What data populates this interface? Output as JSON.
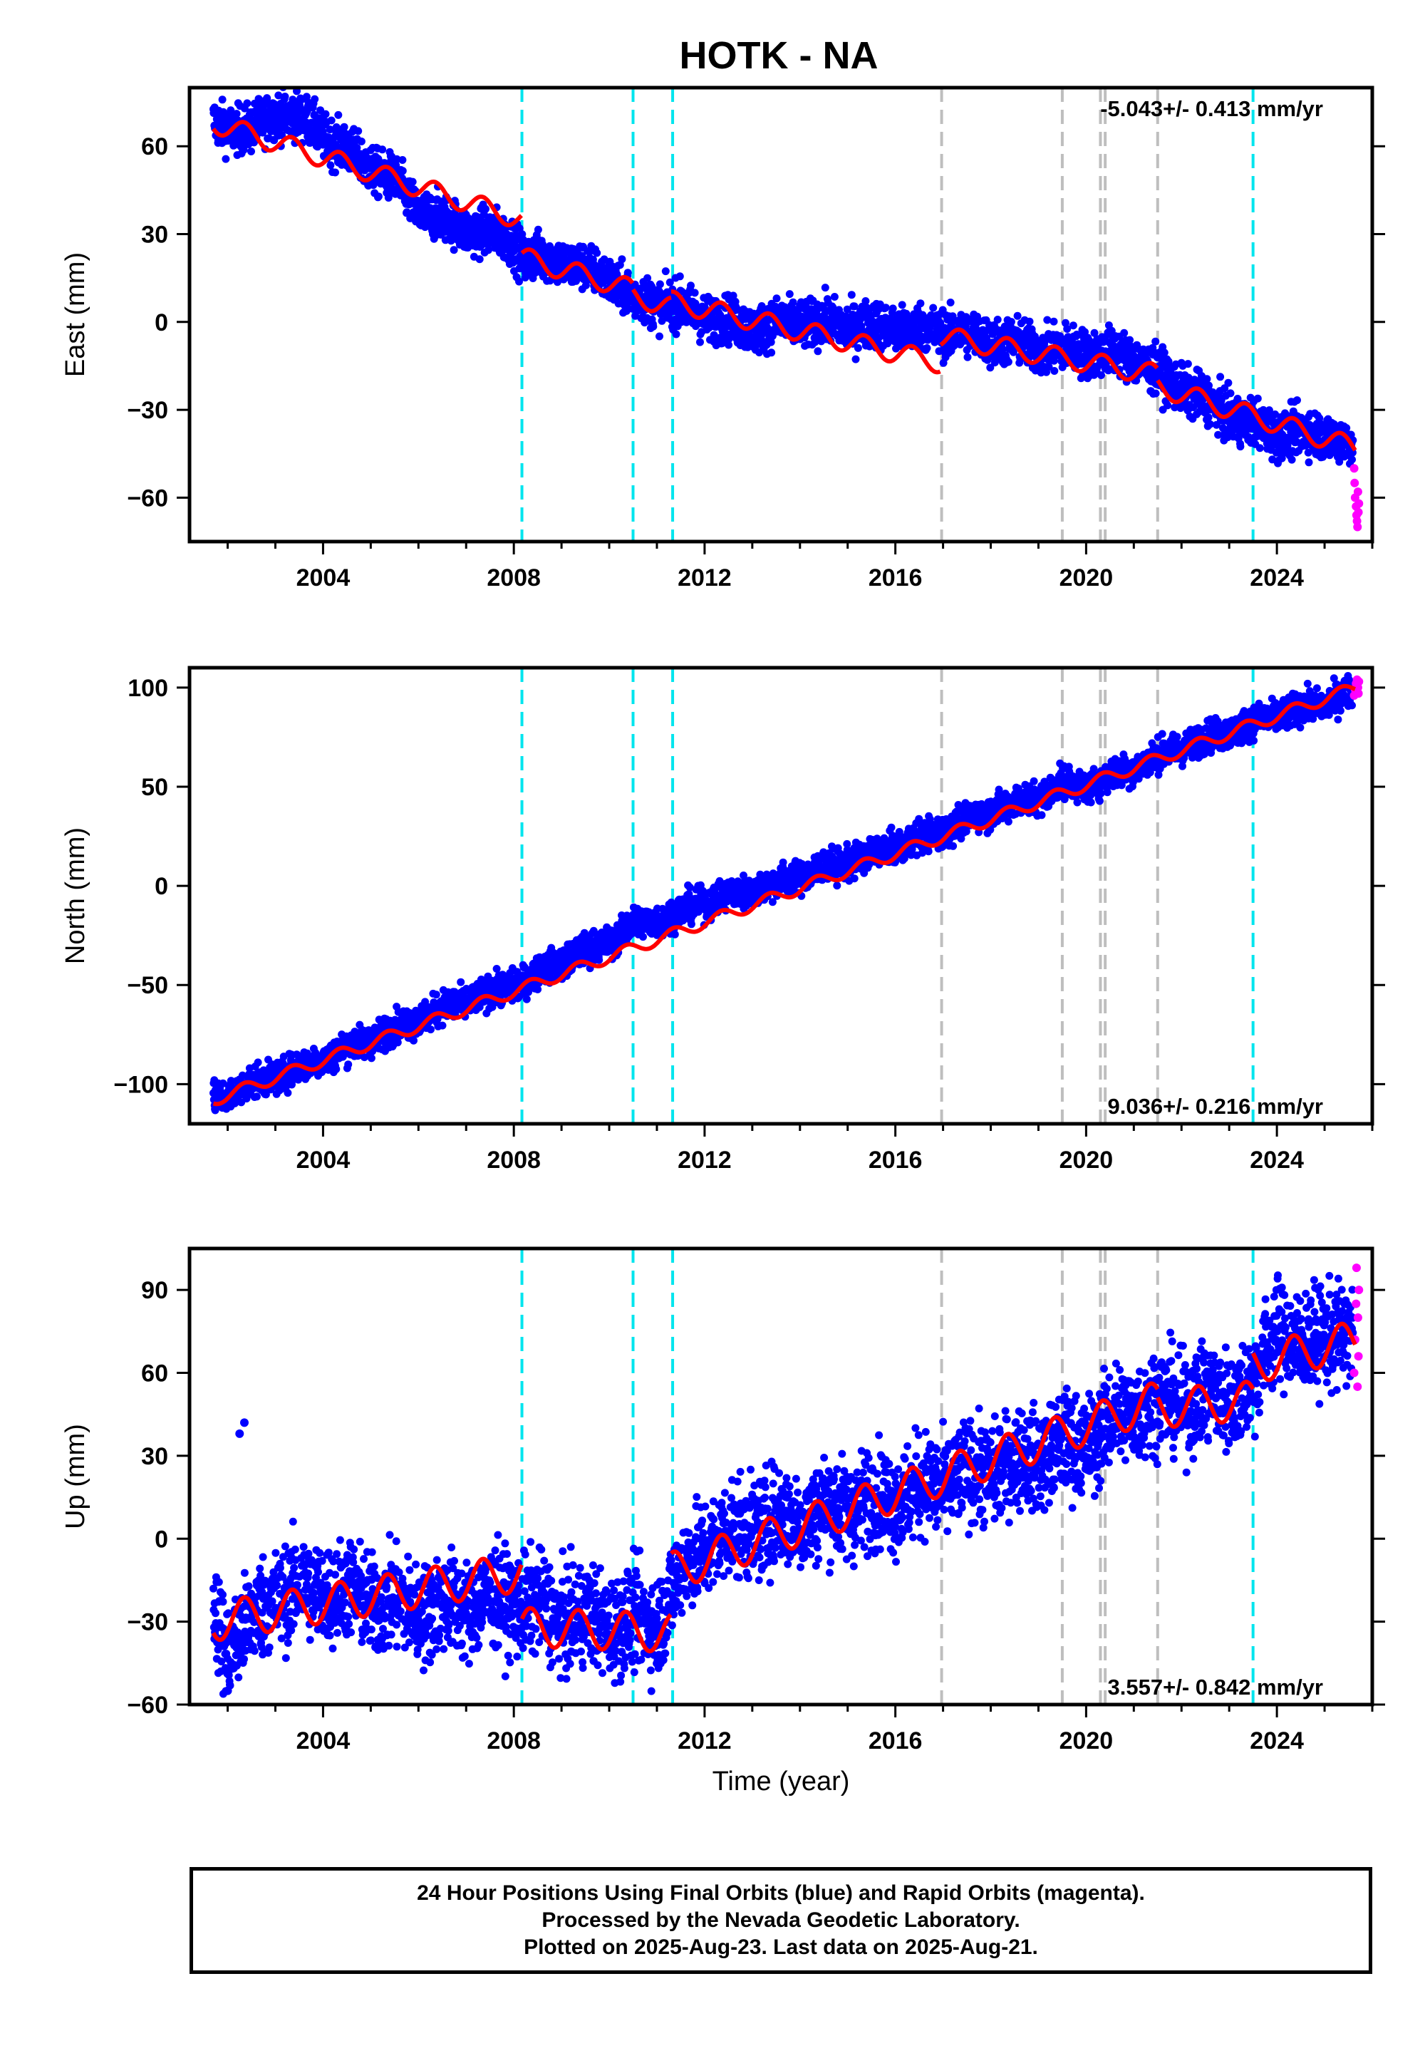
{
  "title": "HOTK - NA",
  "chart_data": [
    {
      "type": "scatter",
      "name": "East",
      "ylabel": "East (mm)",
      "ylim": [
        -75,
        80
      ],
      "yticks": [
        60,
        30,
        0,
        -30,
        -60
      ],
      "ytick_labels": [
        "60",
        "30",
        "0",
        "−30",
        "−60"
      ],
      "xlim": [
        2001.2,
        2026.0
      ],
      "xticks": [
        2004,
        2008,
        2012,
        2016,
        2020,
        2024
      ],
      "xtick_labels": [
        "2004",
        "2008",
        "2012",
        "2016",
        "2020",
        "2024"
      ],
      "rate_text": "-5.043+/- 0.413 mm/yr",
      "rate_position": "top-right",
      "final_orbits_trend": [
        [
          2001.7,
          68
        ],
        [
          2002.5,
          65
        ],
        [
          2003.0,
          72
        ],
        [
          2003.7,
          68
        ],
        [
          2004.5,
          58
        ],
        [
          2005.5,
          48
        ],
        [
          2006.0,
          38
        ],
        [
          2007.0,
          32
        ],
        [
          2008.0,
          28
        ],
        [
          2008.2,
          22
        ],
        [
          2009.0,
          21
        ],
        [
          2010.0,
          15
        ],
        [
          2010.5,
          8
        ],
        [
          2011.3,
          6
        ],
        [
          2012.0,
          2
        ],
        [
          2013.0,
          -2
        ],
        [
          2014.0,
          0
        ],
        [
          2015.0,
          -1
        ],
        [
          2016.0,
          -2
        ],
        [
          2017.0,
          -3
        ],
        [
          2018.0,
          -6
        ],
        [
          2019.0,
          -9
        ],
        [
          2020.0,
          -10
        ],
        [
          2021.0,
          -12
        ],
        [
          2021.5,
          -18
        ],
        [
          2022.0,
          -22
        ],
        [
          2023.0,
          -32
        ],
        [
          2024.0,
          -38
        ],
        [
          2025.0,
          -38
        ],
        [
          2025.6,
          -42
        ]
      ],
      "final_orbits_spread": 4,
      "final_orbits_outliers": [],
      "rapid_orbits": [
        [
          2025.62,
          -50
        ],
        [
          2025.63,
          -55
        ],
        [
          2025.64,
          -60
        ],
        [
          2025.66,
          -63
        ],
        [
          2025.67,
          -66
        ],
        [
          2025.68,
          -68
        ],
        [
          2025.69,
          -70
        ],
        [
          2025.7,
          -58
        ],
        [
          2025.71,
          -65
        ],
        [
          2025.72,
          -62
        ]
      ],
      "model": {
        "breaks": [
          2008.17,
          2010.5,
          2011.3,
          2016.95,
          2021.5
        ],
        "segments": [
          {
            "t0": 2001.7,
            "t1": 2008.17,
            "v0": 68,
            "v1": 35
          },
          {
            "t0": 2008.17,
            "t1": 2010.5,
            "v0": 22,
            "v1": 11
          },
          {
            "t0": 2010.5,
            "t1": 2011.3,
            "v0": 9,
            "v1": 5
          },
          {
            "t0": 2011.3,
            "t1": 2016.95,
            "v0": 7,
            "v1": -14
          },
          {
            "t0": 2016.95,
            "t1": 2021.5,
            "v0": -5,
            "v1": -18
          },
          {
            "t0": 2021.5,
            "t1": 2025.65,
            "v0": -22,
            "v1": -43
          }
        ],
        "seasonal_amplitude": 3.5
      },
      "events_cyan": [
        2008.17,
        2010.5,
        2011.33,
        2023.5
      ],
      "events_gray": [
        2016.97,
        2019.5,
        2020.3,
        2020.4,
        2021.5
      ]
    },
    {
      "type": "scatter",
      "name": "North",
      "ylabel": "North (mm)",
      "ylim": [
        -120,
        110
      ],
      "yticks": [
        100,
        50,
        0,
        -50,
        -100
      ],
      "ytick_labels": [
        "100",
        "50",
        "0",
        "−50",
        "−100"
      ],
      "xlim": [
        2001.2,
        2026.0
      ],
      "xticks": [
        2004,
        2008,
        2012,
        2016,
        2020,
        2024
      ],
      "xtick_labels": [
        "2004",
        "2008",
        "2012",
        "2016",
        "2020",
        "2024"
      ],
      "rate_text": "9.036+/- 0.216 mm/yr",
      "rate_position": "bottom-right",
      "final_orbits_trend": [
        [
          2001.7,
          -108
        ],
        [
          2002.5,
          -100
        ],
        [
          2003.5,
          -92
        ],
        [
          2004.5,
          -82
        ],
        [
          2005.5,
          -72
        ],
        [
          2006.5,
          -62
        ],
        [
          2007.5,
          -54
        ],
        [
          2008.2,
          -48
        ],
        [
          2009.0,
          -38
        ],
        [
          2010.0,
          -28
        ],
        [
          2010.5,
          -20
        ],
        [
          2011.3,
          -15
        ],
        [
          2012.0,
          -8
        ],
        [
          2013.0,
          -2
        ],
        [
          2014.0,
          5
        ],
        [
          2015.0,
          12
        ],
        [
          2016.0,
          20
        ],
        [
          2017.0,
          28
        ],
        [
          2018.0,
          38
        ],
        [
          2019.0,
          45
        ],
        [
          2019.5,
          52
        ],
        [
          2020.0,
          50
        ],
        [
          2021.0,
          60
        ],
        [
          2022.0,
          70
        ],
        [
          2023.0,
          78
        ],
        [
          2024.0,
          86
        ],
        [
          2025.0,
          92
        ],
        [
          2025.6,
          98
        ]
      ],
      "final_orbits_spread": 4,
      "final_orbits_outliers": [],
      "rapid_orbits": [
        [
          2025.62,
          96
        ],
        [
          2025.64,
          99
        ],
        [
          2025.66,
          102
        ],
        [
          2025.68,
          104
        ],
        [
          2025.7,
          100
        ],
        [
          2025.71,
          97
        ],
        [
          2025.72,
          103
        ]
      ],
      "model": {
        "breaks": [],
        "segments": [
          {
            "t0": 2001.7,
            "t1": 2025.65,
            "v0": -108,
            "v1": 100
          }
        ],
        "seasonal_amplitude": 3
      },
      "events_cyan": [
        2008.17,
        2010.5,
        2011.33,
        2023.5
      ],
      "events_gray": [
        2016.97,
        2019.5,
        2020.3,
        2020.4,
        2021.5
      ]
    },
    {
      "type": "scatter",
      "name": "Up",
      "ylabel": "Up (mm)",
      "ylim": [
        -60,
        105
      ],
      "yticks": [
        90,
        60,
        30,
        0,
        -30,
        -60
      ],
      "ytick_labels": [
        "90",
        "60",
        "30",
        "0",
        "−30",
        "−60"
      ],
      "xlim": [
        2001.2,
        2026.0
      ],
      "xticks": [
        2004,
        2008,
        2012,
        2016,
        2020,
        2024
      ],
      "xtick_labels": [
        "2004",
        "2008",
        "2012",
        "2016",
        "2020",
        "2024"
      ],
      "xlabel": "Time (year)",
      "rate_text": "3.557+/- 0.842 mm/yr",
      "rate_position": "bottom-right",
      "final_orbits_trend": [
        [
          2001.7,
          -25
        ],
        [
          2002.0,
          -40
        ],
        [
          2003.0,
          -20
        ],
        [
          2004.0,
          -18
        ],
        [
          2005.0,
          -22
        ],
        [
          2006.0,
          -26
        ],
        [
          2007.0,
          -24
        ],
        [
          2008.0,
          -22
        ],
        [
          2009.0,
          -28
        ],
        [
          2010.0,
          -30
        ],
        [
          2011.0,
          -30
        ],
        [
          2011.5,
          -12
        ],
        [
          2012.0,
          -2
        ],
        [
          2013.0,
          5
        ],
        [
          2014.0,
          8
        ],
        [
          2015.0,
          12
        ],
        [
          2016.0,
          15
        ],
        [
          2017.0,
          20
        ],
        [
          2018.0,
          25
        ],
        [
          2019.0,
          30
        ],
        [
          2020.0,
          35
        ],
        [
          2021.0,
          48
        ],
        [
          2022.0,
          50
        ],
        [
          2023.0,
          52
        ],
        [
          2023.5,
          55
        ],
        [
          2024.0,
          78
        ],
        [
          2024.5,
          68
        ],
        [
          2025.0,
          75
        ],
        [
          2025.6,
          72
        ]
      ],
      "final_orbits_spread": 9,
      "final_orbits_outliers": [
        [
          2002.25,
          38
        ],
        [
          2002.35,
          42
        ],
        [
          2002.0,
          -55
        ]
      ],
      "rapid_orbits": [
        [
          2025.62,
          60
        ],
        [
          2025.64,
          72
        ],
        [
          2025.66,
          85
        ],
        [
          2025.67,
          98
        ],
        [
          2025.69,
          55
        ],
        [
          2025.7,
          80
        ],
        [
          2025.71,
          66
        ],
        [
          2025.72,
          90
        ]
      ],
      "model": {
        "breaks": [
          2008.17,
          2011.3,
          2021.5,
          2023.5
        ],
        "segments": [
          {
            "t0": 2001.7,
            "t1": 2008.17,
            "v0": -30,
            "v1": -12
          },
          {
            "t0": 2008.17,
            "t1": 2011.3,
            "v0": -32,
            "v1": -34
          },
          {
            "t0": 2011.3,
            "t1": 2021.5,
            "v0": -12,
            "v1": 50
          },
          {
            "t0": 2021.5,
            "t1": 2023.5,
            "v0": 47,
            "v1": 50
          },
          {
            "t0": 2023.5,
            "t1": 2025.65,
            "v0": 63,
            "v1": 72
          }
        ],
        "seasonal_amplitude": 7
      },
      "events_cyan": [
        2008.17,
        2010.5,
        2011.33,
        2023.5
      ],
      "events_gray": [
        2016.97,
        2019.5,
        2020.3,
        2020.4,
        2021.5
      ]
    }
  ],
  "colors": {
    "final_orbits": "#0000ff",
    "rapid_orbits": "#ff00ff",
    "model": "#ff0000",
    "event_cyan": "#00e5ee",
    "event_gray": "#bebebe"
  },
  "footer": {
    "line1": "24 Hour Positions Using Final Orbits (blue) and Rapid Orbits (magenta).",
    "line2": "Processed by the Nevada Geodetic Laboratory.",
    "line3": "Plotted on 2025-Aug-23. Last data on 2025-Aug-21."
  }
}
